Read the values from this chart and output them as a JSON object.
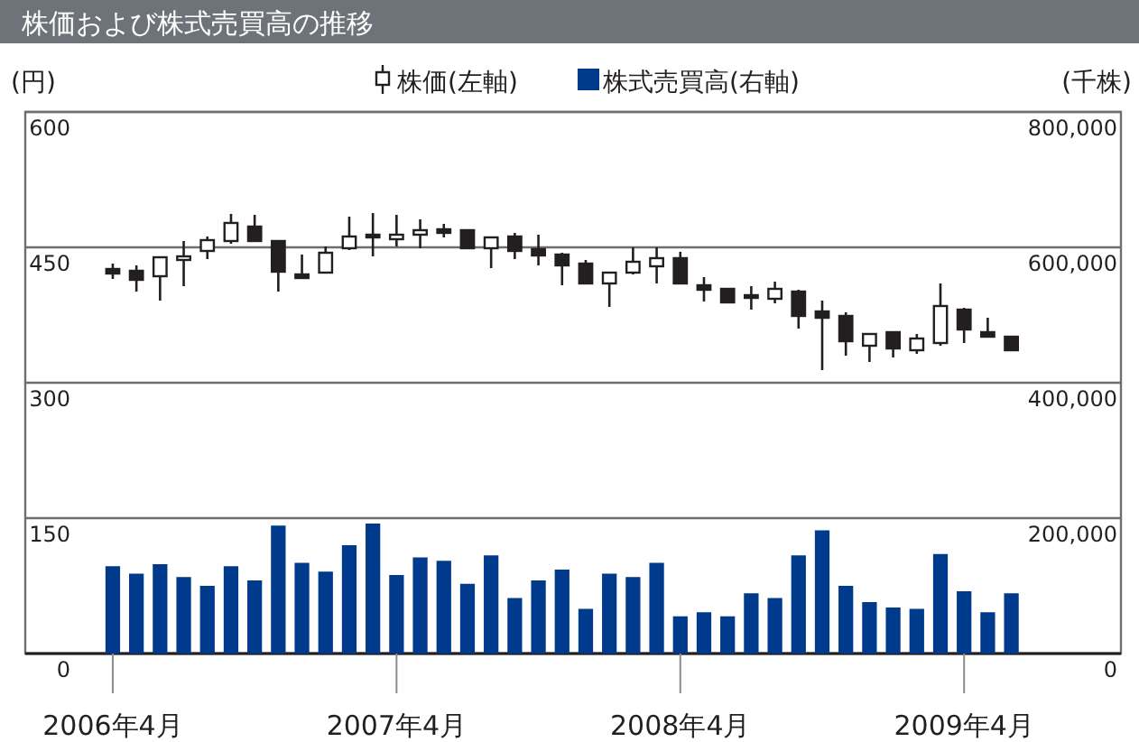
{
  "chart_data": {
    "type": "candlestick",
    "title": "株価および株式売買高の推移",
    "ylabel": "(円)",
    "y2label": "(千株)",
    "x": [
      "2006-04",
      "2006-05",
      "2006-06",
      "2006-07",
      "2006-08",
      "2006-09",
      "2006-10",
      "2006-11",
      "2006-12",
      "2007-01",
      "2007-02",
      "2007-03",
      "2007-04",
      "2007-05",
      "2007-06",
      "2007-07",
      "2007-08",
      "2007-09",
      "2007-10",
      "2007-11",
      "2007-12",
      "2008-01",
      "2008-02",
      "2008-03",
      "2008-04",
      "2008-05",
      "2008-06",
      "2008-07",
      "2008-08",
      "2008-09",
      "2008-10",
      "2008-11",
      "2008-12",
      "2009-01",
      "2009-02",
      "2009-03",
      "2009-04",
      "2009-05",
      "2009-06"
    ],
    "xlim": [
      "2005-12-10",
      "2009-10-20"
    ],
    "xticks": [
      {
        "value": "2006-04",
        "label": "2006年4月"
      },
      {
        "value": "2007-04",
        "label": "2007年4月"
      },
      {
        "value": "2008-04",
        "label": "2008年4月"
      },
      {
        "value": "2009-04",
        "label": "2009年4月"
      }
    ],
    "ylim": [
      0,
      600
    ],
    "yticks": [
      0,
      150,
      300,
      450,
      600
    ],
    "y2lim": [
      0,
      800000
    ],
    "y2ticks": [
      0,
      {
        "value": 200000,
        "label": "200,000"
      },
      {
        "value": 400000,
        "label": "400,000"
      },
      {
        "value": 600000,
        "label": "600,000"
      },
      {
        "value": 800000,
        "label": "800,000"
      }
    ],
    "grid": "y",
    "legend": "top right",
    "series": [
      {
        "name": "株価(左軸)",
        "color": "#231f20",
        "ohlc": [
          [
            426,
            432,
            415,
            421
          ],
          [
            424,
            430,
            401,
            414
          ],
          [
            418,
            439,
            391,
            439
          ],
          [
            436,
            457,
            407,
            440
          ],
          [
            446,
            462,
            437,
            458
          ],
          [
            457,
            487,
            454,
            477
          ],
          [
            473,
            486,
            457,
            457
          ],
          [
            457,
            457,
            401,
            423
          ],
          [
            420,
            442,
            416,
            416
          ],
          [
            422,
            451,
            422,
            444
          ],
          [
            449,
            484,
            447,
            462
          ],
          [
            464,
            488,
            440,
            461
          ],
          [
            459,
            486,
            451,
            464
          ],
          [
            464,
            481,
            449,
            469
          ],
          [
            470,
            476,
            461,
            466
          ],
          [
            469,
            469,
            449,
            449
          ],
          [
            449,
            461,
            427,
            461
          ],
          [
            462,
            466,
            437,
            446
          ],
          [
            448,
            464,
            430,
            441
          ],
          [
            442,
            444,
            408,
            430
          ],
          [
            432,
            436,
            410,
            410
          ],
          [
            410,
            422,
            384,
            422
          ],
          [
            422,
            450,
            420,
            434
          ],
          [
            429,
            450,
            410,
            438
          ],
          [
            438,
            445,
            410,
            410
          ],
          [
            408,
            417,
            390,
            403
          ],
          [
            404,
            404,
            389,
            389
          ],
          [
            397,
            407,
            381,
            395
          ],
          [
            393,
            412,
            388,
            404
          ],
          [
            401,
            403,
            360,
            374
          ],
          [
            379,
            391,
            314,
            372
          ],
          [
            374,
            378,
            330,
            346
          ],
          [
            341,
            354,
            323,
            354
          ],
          [
            356,
            356,
            328,
            338
          ],
          [
            336,
            354,
            332,
            349
          ],
          [
            344,
            410,
            341,
            385
          ],
          [
            381,
            383,
            344,
            359
          ],
          [
            356,
            372,
            351,
            351
          ],
          [
            351,
            351,
            336,
            336
          ]
        ]
      },
      {
        "name": "株式売買高(右軸)",
        "type": "bar",
        "axis": "y2",
        "color": "#003a8c",
        "values": [
          129000,
          118000,
          132000,
          113000,
          100000,
          129000,
          108000,
          189000,
          134000,
          121000,
          160000,
          192000,
          116000,
          142000,
          137000,
          103000,
          145000,
          82000,
          108000,
          124000,
          66000,
          118000,
          113000,
          134000,
          55000,
          61000,
          55000,
          89000,
          82000,
          145000,
          182000,
          100000,
          76000,
          68000,
          66000,
          147000,
          92000,
          61000,
          89000
        ]
      }
    ]
  }
}
